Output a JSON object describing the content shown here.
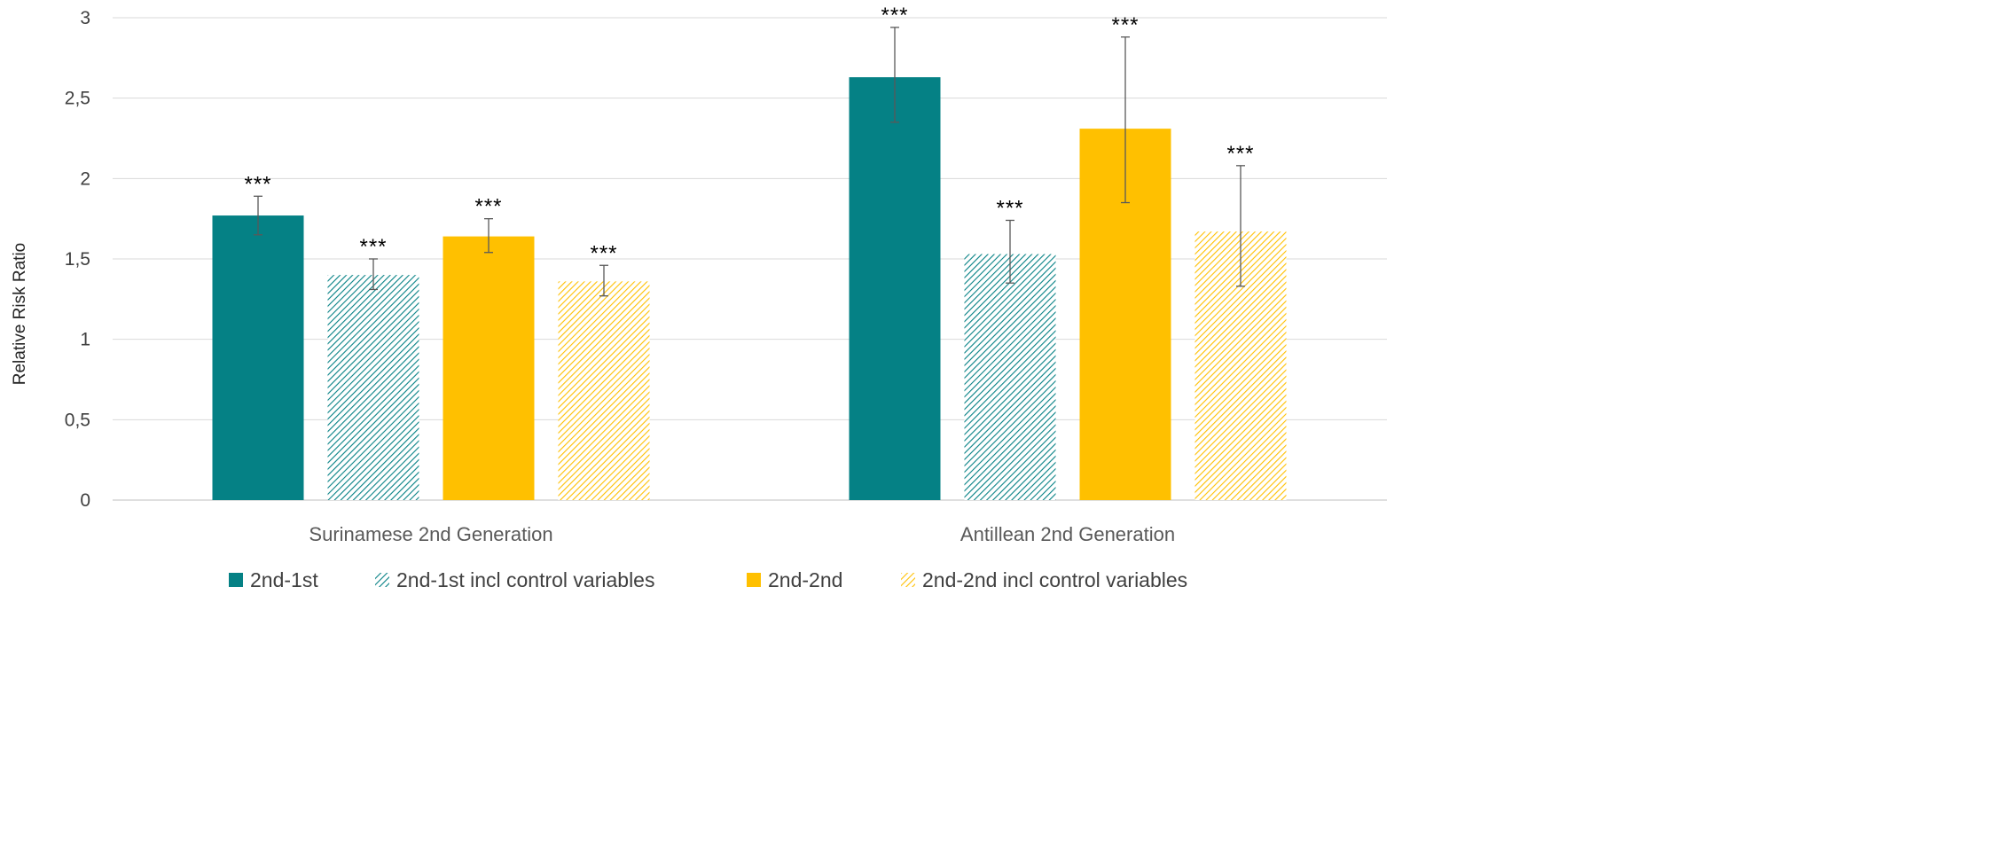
{
  "chart_data": {
    "type": "bar",
    "ylabel": "Relative Risk Ratio",
    "xlabel": "",
    "ylim": [
      0,
      3
    ],
    "yticks": [
      {
        "value": 0,
        "label": "0"
      },
      {
        "value": 0.5,
        "label": "0,5"
      },
      {
        "value": 1,
        "label": "1"
      },
      {
        "value": 1.5,
        "label": "1,5"
      },
      {
        "value": 2,
        "label": "2"
      },
      {
        "value": 2.5,
        "label": "2,5"
      },
      {
        "value": 3,
        "label": "3"
      }
    ],
    "grid": true,
    "legend_position": "bottom",
    "categories": [
      "Surinamese 2nd Generation",
      "Antillean 2nd Generation"
    ],
    "series": [
      {
        "name": "2nd-1st",
        "color": "#058185",
        "pattern": "solid",
        "values": [
          1.77,
          2.63
        ],
        "error_low": [
          1.65,
          2.35
        ],
        "error_high": [
          1.89,
          2.94
        ],
        "significance": [
          "***",
          "***"
        ]
      },
      {
        "name": "2nd-1st incl control variables",
        "color": "#058185",
        "pattern": "diagonal-hatch",
        "values": [
          1.4,
          1.53
        ],
        "error_low": [
          1.31,
          1.35
        ],
        "error_high": [
          1.5,
          1.74
        ],
        "significance": [
          "***",
          "***"
        ]
      },
      {
        "name": "2nd-2nd",
        "color": "#FFC000",
        "pattern": "solid",
        "values": [
          1.64,
          2.31
        ],
        "error_low": [
          1.54,
          1.85
        ],
        "error_high": [
          1.75,
          2.88
        ],
        "significance": [
          "***",
          "***"
        ]
      },
      {
        "name": "2nd-2nd incl control variables",
        "color": "#FFC000",
        "pattern": "diagonal-hatch",
        "values": [
          1.36,
          1.67
        ],
        "error_low": [
          1.27,
          1.33
        ],
        "error_high": [
          1.46,
          2.08
        ],
        "significance": [
          "***",
          "***"
        ]
      }
    ]
  }
}
